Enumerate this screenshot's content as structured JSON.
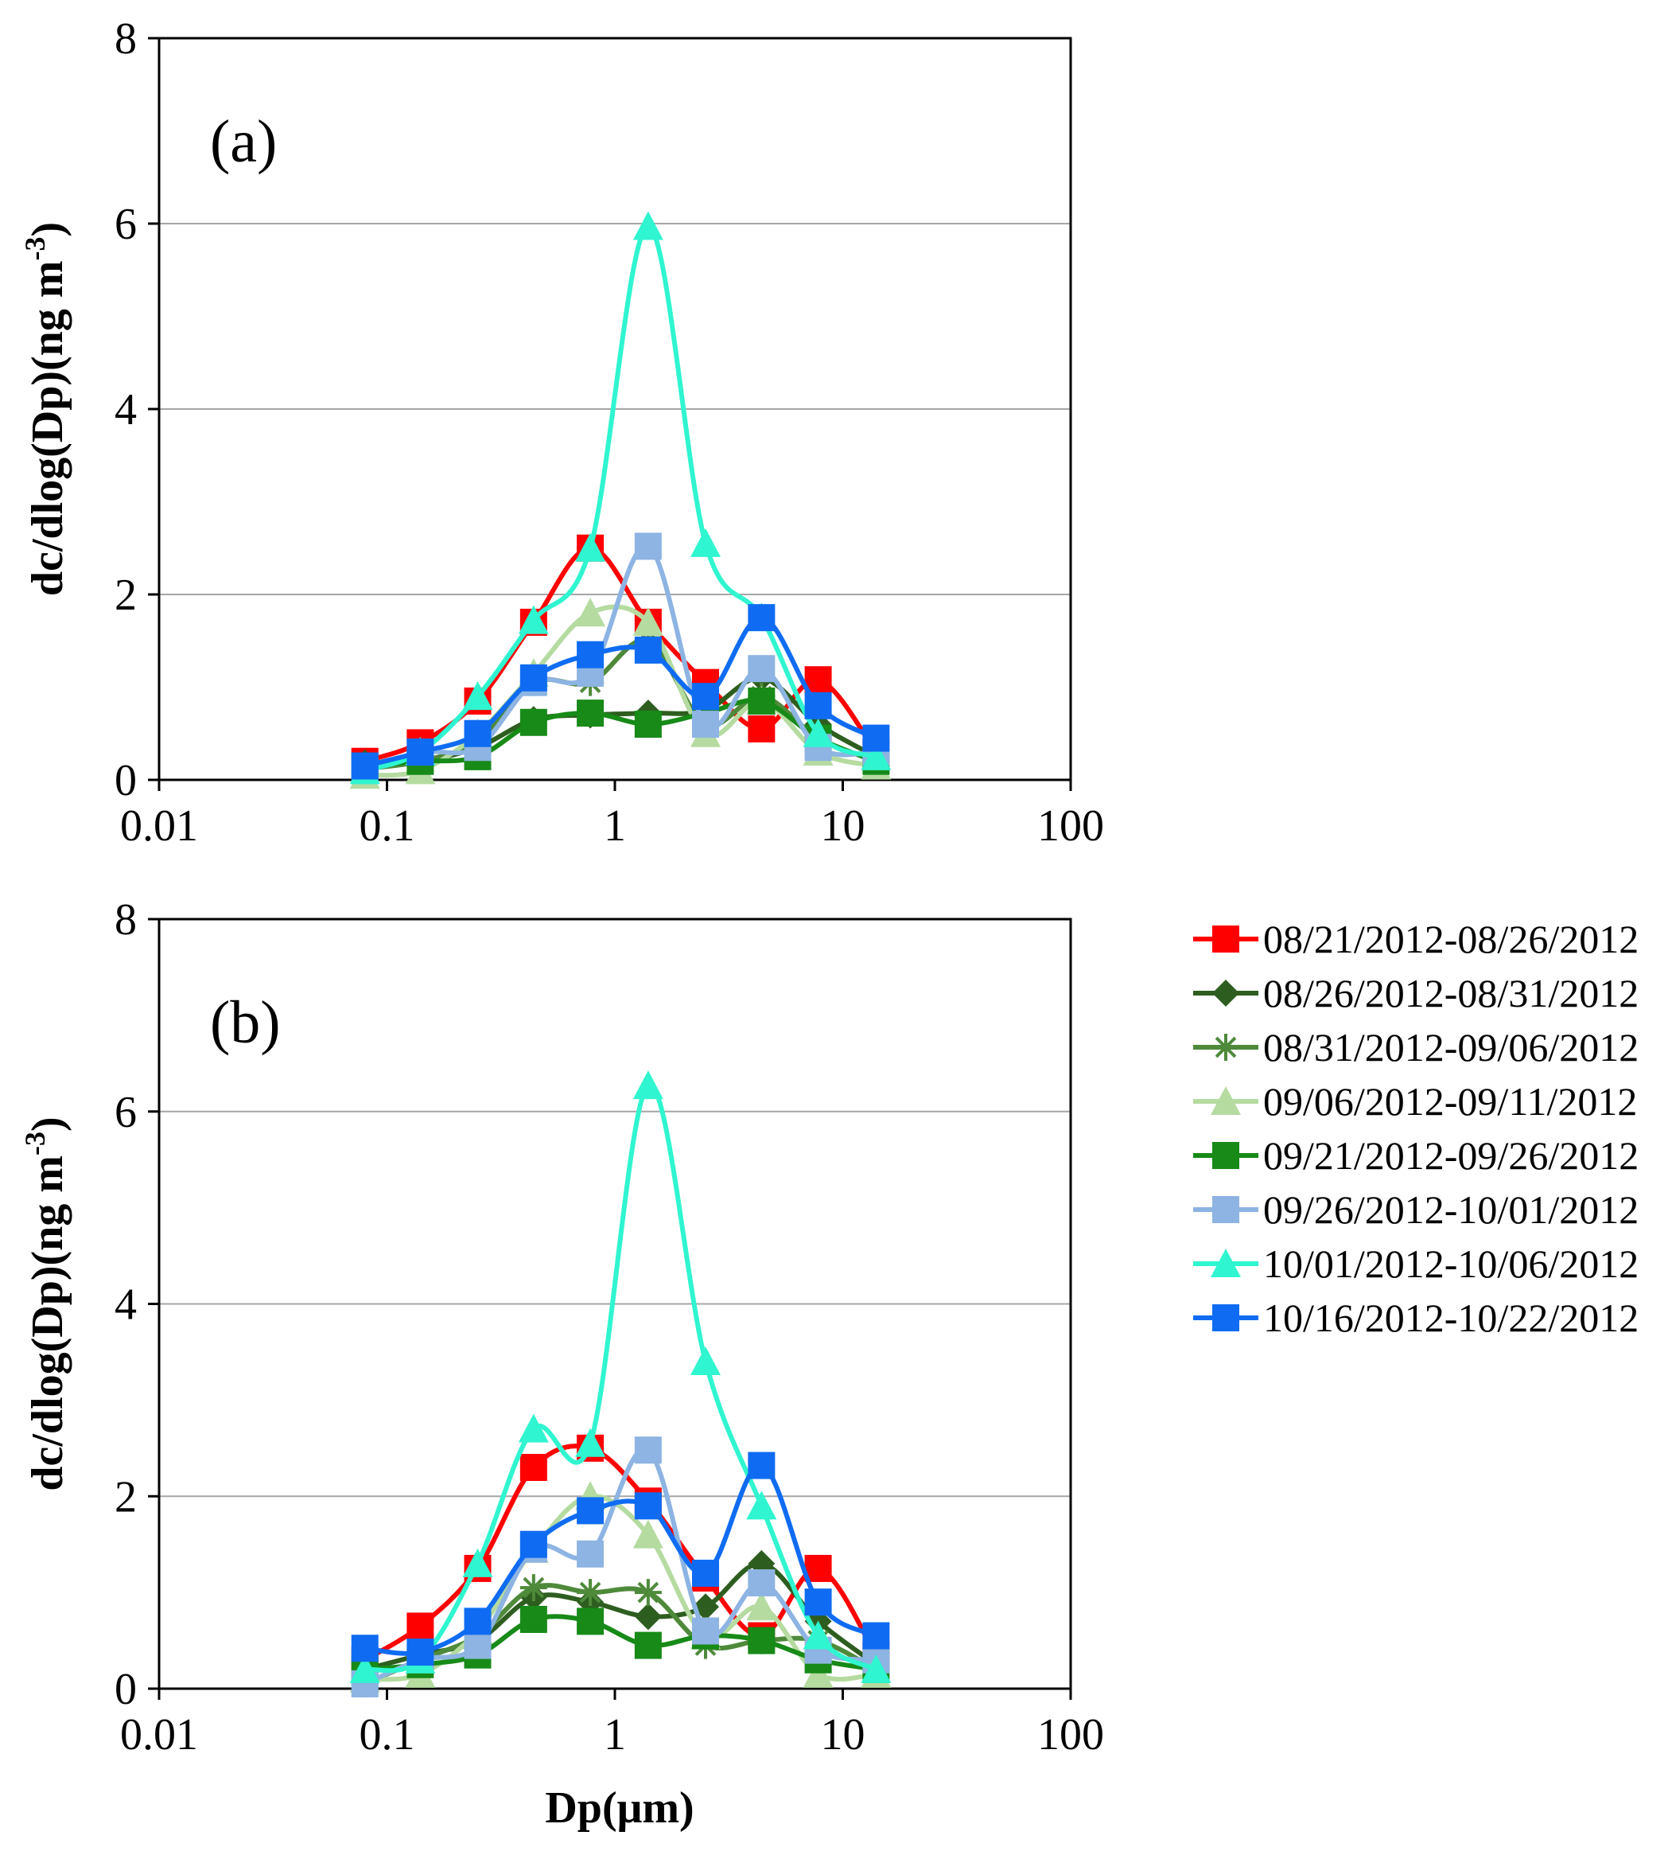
{
  "chart_data": [
    {
      "type": "line",
      "panel_label": "(a)",
      "xlabel": "",
      "ylabel": "dc/dlog(Dp)(ng m-3)",
      "xscale": "log",
      "xlim": [
        0.01,
        100
      ],
      "ylim": [
        0,
        8
      ],
      "x_ticks": [
        "0.01",
        "0.1",
        "1",
        "10",
        "100"
      ],
      "y_ticks": [
        "0",
        "2",
        "4",
        "6",
        "8"
      ],
      "grid": "horizontal",
      "x": [
        0.08,
        0.14,
        0.25,
        0.44,
        0.78,
        1.4,
        2.5,
        4.4,
        7.8,
        14
      ],
      "series": [
        {
          "name": "08/21/2012-08/26/2012",
          "values": [
            0.2,
            0.4,
            0.85,
            1.7,
            2.5,
            1.7,
            1.05,
            0.55,
            1.08,
            0.3
          ]
        },
        {
          "name": "08/26/2012-08/31/2012",
          "values": [
            0.18,
            0.2,
            0.35,
            0.65,
            0.7,
            0.72,
            0.75,
            1.1,
            0.6,
            0.25
          ]
        },
        {
          "name": "08/31/2012-09/06/2012",
          "values": [
            0.12,
            0.2,
            0.42,
            1.05,
            1.05,
            1.5,
            0.6,
            0.9,
            0.45,
            0.2
          ]
        },
        {
          "name": "09/06/2012-09/11/2012",
          "values": [
            0.05,
            0.1,
            0.5,
            1.15,
            1.8,
            1.7,
            0.5,
            0.85,
            0.3,
            0.15
          ]
        },
        {
          "name": "09/21/2012-09/26/2012",
          "values": [
            0.15,
            0.2,
            0.25,
            0.62,
            0.72,
            0.6,
            0.72,
            0.85,
            0.45,
            0.2
          ]
        },
        {
          "name": "09/26/2012-10/01/2012",
          "values": [
            0.1,
            0.3,
            0.35,
            1.05,
            1.15,
            2.52,
            0.6,
            1.2,
            0.35,
            0.3
          ]
        },
        {
          "name": "10/01/2012-10/06/2012",
          "values": [
            0.1,
            0.3,
            0.9,
            1.72,
            2.5,
            5.97,
            2.55,
            1.75,
            0.5,
            0.25
          ]
        },
        {
          "name": "10/16/2012-10/22/2012",
          "values": [
            0.15,
            0.3,
            0.5,
            1.1,
            1.35,
            1.4,
            0.9,
            1.75,
            0.8,
            0.45
          ]
        }
      ]
    },
    {
      "type": "line",
      "panel_label": "(b)",
      "xlabel": "Dp(μm)",
      "ylabel": "dc/dlog(Dp)(ng m-3)",
      "xscale": "log",
      "xlim": [
        0.01,
        100
      ],
      "ylim": [
        0,
        8
      ],
      "x_ticks": [
        "0.01",
        "0.1",
        "1",
        "10",
        "100"
      ],
      "y_ticks": [
        "0",
        "2",
        "4",
        "6",
        "8"
      ],
      "grid": "horizontal",
      "legend_position": "right",
      "x": [
        0.08,
        0.14,
        0.25,
        0.44,
        0.78,
        1.4,
        2.5,
        4.4,
        7.8,
        14
      ],
      "series": [
        {
          "name": "08/21/2012-08/26/2012",
          "values": [
            0.3,
            0.65,
            1.25,
            2.3,
            2.5,
            1.95,
            1.15,
            0.55,
            1.25,
            0.35
          ]
        },
        {
          "name": "08/26/2012-08/31/2012",
          "values": [
            0.2,
            0.35,
            0.5,
            0.95,
            0.9,
            0.75,
            0.85,
            1.3,
            0.7,
            0.25
          ]
        },
        {
          "name": "08/31/2012-09/06/2012",
          "values": [
            0.05,
            0.3,
            0.55,
            1.05,
            1.0,
            1.0,
            0.45,
            0.5,
            0.5,
            0.2
          ]
        },
        {
          "name": "09/06/2012-09/11/2012",
          "values": [
            0.1,
            0.15,
            0.6,
            1.45,
            2.0,
            1.6,
            0.55,
            0.85,
            0.15,
            0.15
          ]
        },
        {
          "name": "09/21/2012-09/26/2012",
          "values": [
            0.2,
            0.25,
            0.35,
            0.72,
            0.7,
            0.45,
            0.55,
            0.5,
            0.3,
            0.2
          ]
        },
        {
          "name": "09/26/2012-10/01/2012",
          "values": [
            0.05,
            0.3,
            0.45,
            1.45,
            1.4,
            2.48,
            0.6,
            1.1,
            0.4,
            0.3
          ]
        },
        {
          "name": "10/01/2012-10/06/2012",
          "values": [
            0.2,
            0.3,
            1.3,
            2.7,
            2.55,
            6.27,
            3.4,
            1.9,
            0.55,
            0.2
          ]
        },
        {
          "name": "10/16/2012-10/22/2012",
          "values": [
            0.42,
            0.38,
            0.7,
            1.5,
            1.85,
            1.9,
            1.2,
            2.32,
            0.9,
            0.55
          ]
        }
      ]
    }
  ],
  "legend": [
    {
      "label": "08/21/2012-08/26/2012",
      "color": "#ff0000",
      "marker": "square"
    },
    {
      "label": "08/26/2012-08/31/2012",
      "color": "#2e5e1f",
      "marker": "diamond"
    },
    {
      "label": "08/31/2012-09/06/2012",
      "color": "#4e8a3a",
      "marker": "star"
    },
    {
      "label": "09/06/2012-09/11/2012",
      "color": "#b5dba0",
      "marker": "triangle"
    },
    {
      "label": "09/21/2012-09/26/2012",
      "color": "#178a17",
      "marker": "square"
    },
    {
      "label": "09/26/2012-10/01/2012",
      "color": "#8db4e2",
      "marker": "square"
    },
    {
      "label": "10/01/2012-10/06/2012",
      "color": "#2ff5d0",
      "marker": "triangle"
    },
    {
      "label": "10/16/2012-10/22/2012",
      "color": "#0f6cf2",
      "marker": "square"
    }
  ]
}
